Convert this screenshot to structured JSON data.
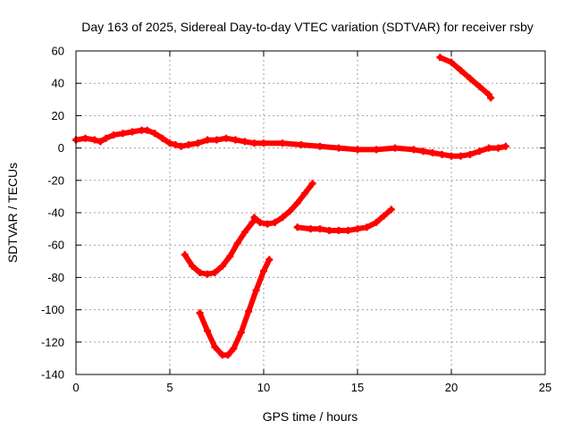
{
  "chart_data": {
    "type": "line",
    "title": "Day 163 of 2025, Sidereal Day-to-day VTEC variation (SDTVAR) for receiver rsby",
    "xlabel": "GPS time / hours",
    "ylabel": "SDTVAR / TECUs",
    "xlim": [
      0,
      25
    ],
    "ylim": [
      -140,
      60
    ],
    "xticks": [
      0,
      5,
      10,
      15,
      20,
      25
    ],
    "yticks": [
      -140,
      -120,
      -100,
      -80,
      -60,
      -40,
      -20,
      0,
      20,
      40,
      60
    ],
    "grid": true,
    "series_color": "#ff0000",
    "series": [
      {
        "name": "main-track",
        "x": [
          0,
          0.5,
          1.0,
          1.3,
          1.6,
          2.0,
          2.5,
          3.0,
          3.5,
          3.8,
          4.2,
          4.6,
          5.0,
          5.3,
          5.6,
          6.0,
          6.5,
          7.0,
          7.5,
          8.0,
          8.5,
          9.0,
          9.5,
          10.0,
          11.0,
          12.0,
          13.0,
          14.0,
          15.0,
          16.0,
          17.0,
          18.0,
          18.5,
          19.0,
          19.5,
          20.0,
          20.5,
          21.0,
          21.5,
          22.0,
          22.5,
          22.9
        ],
        "y": [
          5,
          6,
          5,
          4,
          6,
          8,
          9,
          10,
          11,
          11,
          9,
          6,
          3,
          2,
          1,
          2,
          3,
          5,
          5,
          6,
          5,
          4,
          3,
          3,
          3,
          2,
          1,
          0,
          -1,
          -1,
          0,
          -1,
          -2,
          -3,
          -4,
          -5,
          -5,
          -4,
          -2,
          0,
          0,
          1
        ]
      },
      {
        "name": "arc-top-right",
        "x": [
          19.4,
          20.0,
          20.5,
          21.0,
          21.5,
          22.0,
          22.1
        ],
        "y": [
          56,
          53,
          48,
          43,
          38,
          33,
          31
        ]
      },
      {
        "name": "arc-a",
        "x": [
          5.8,
          6.2,
          6.6,
          7.0,
          7.4,
          7.8,
          8.2,
          8.6,
          9.0,
          9.4
        ],
        "y": [
          -66,
          -73,
          -77,
          -78,
          -77,
          -73,
          -67,
          -59,
          -52,
          -46
        ]
      },
      {
        "name": "arc-b",
        "x": [
          6.6,
          7.0,
          7.4,
          7.8,
          8.1,
          8.4,
          8.8,
          9.2,
          9.6,
          10.0,
          10.3
        ],
        "y": [
          -102,
          -113,
          -123,
          -128,
          -128,
          -124,
          -114,
          -101,
          -88,
          -76,
          -69
        ]
      },
      {
        "name": "arc-c",
        "x": [
          9.5,
          9.8,
          10.2,
          10.6,
          11.0,
          11.4,
          11.8,
          12.2,
          12.6
        ],
        "y": [
          -43,
          -46,
          -47,
          -46,
          -43,
          -39,
          -34,
          -28,
          -22
        ]
      },
      {
        "name": "arc-d",
        "x": [
          11.8,
          12.5,
          13.0,
          13.5,
          14.0,
          14.5,
          15.0,
          15.5,
          16.0,
          16.4,
          16.8
        ],
        "y": [
          -49,
          -50,
          -50,
          -51,
          -51,
          -51,
          -50,
          -49,
          -46,
          -42,
          -38
        ]
      }
    ]
  }
}
